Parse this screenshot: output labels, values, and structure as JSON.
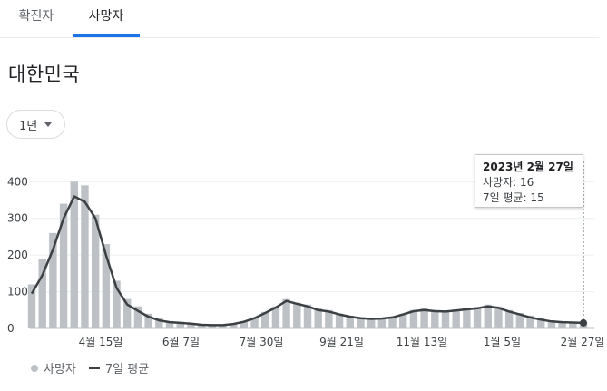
{
  "tabs": [
    {
      "label": "확진자",
      "active": false
    },
    {
      "label": "사망자",
      "active": true
    }
  ],
  "title": "대한민국",
  "range": {
    "label": "1년"
  },
  "colors": {
    "bar": "#bdc1c6",
    "line": "#3c4043",
    "accent": "#1a73e8"
  },
  "tooltip": {
    "date": "2023년 2월 27일",
    "deaths_label": "사망자: 16",
    "avg_label": "7일 평균: 15"
  },
  "legend": {
    "bars": "사망자",
    "line": "7일 평균"
  },
  "chart_data": {
    "type": "bar",
    "x": [
      "2022-03-01",
      "2022-03-08",
      "2022-03-15",
      "2022-03-22",
      "2022-03-29",
      "2022-04-05",
      "2022-04-12",
      "2022-04-19",
      "2022-04-26",
      "2022-05-03",
      "2022-05-10",
      "2022-05-17",
      "2022-05-24",
      "2022-05-31",
      "2022-06-07",
      "2022-06-14",
      "2022-06-21",
      "2022-06-28",
      "2022-07-05",
      "2022-07-12",
      "2022-07-19",
      "2022-07-26",
      "2022-08-02",
      "2022-08-09",
      "2022-08-16",
      "2022-08-23",
      "2022-08-30",
      "2022-09-06",
      "2022-09-13",
      "2022-09-20",
      "2022-09-27",
      "2022-10-04",
      "2022-10-11",
      "2022-10-18",
      "2022-10-25",
      "2022-11-01",
      "2022-11-08",
      "2022-11-15",
      "2022-11-22",
      "2022-11-29",
      "2022-12-06",
      "2022-12-13",
      "2022-12-20",
      "2022-12-27",
      "2023-01-03",
      "2023-01-10",
      "2023-01-17",
      "2023-01-24",
      "2023-01-31",
      "2023-02-07",
      "2023-02-14",
      "2023-02-21",
      "2023-02-27"
    ],
    "series": [
      {
        "name": "사망자",
        "type": "bar",
        "values": [
          120,
          190,
          260,
          340,
          400,
          390,
          310,
          230,
          130,
          80,
          60,
          40,
          30,
          20,
          18,
          15,
          12,
          10,
          10,
          14,
          20,
          30,
          45,
          60,
          80,
          70,
          65,
          55,
          50,
          40,
          35,
          30,
          28,
          28,
          32,
          40,
          50,
          55,
          50,
          48,
          52,
          55,
          58,
          65,
          60,
          50,
          42,
          35,
          28,
          22,
          20,
          18,
          16
        ]
      },
      {
        "name": "7일 평균",
        "type": "line",
        "values": [
          95,
          145,
          215,
          300,
          360,
          345,
          300,
          200,
          110,
          65,
          48,
          32,
          22,
          17,
          15,
          13,
          10,
          9,
          9,
          12,
          18,
          28,
          42,
          57,
          75,
          67,
          60,
          50,
          46,
          38,
          32,
          28,
          26,
          27,
          30,
          38,
          47,
          50,
          47,
          46,
          49,
          52,
          55,
          60,
          56,
          46,
          38,
          30,
          24,
          19,
          17,
          16,
          15
        ]
      }
    ],
    "yticks": [
      0,
      100,
      200,
      300,
      400
    ],
    "xticks": [
      "4월 15일",
      "6월 7일",
      "7월 30일",
      "9월 21일",
      "11월 13일",
      "1월 5일",
      "2월 27일"
    ],
    "ylim": [
      0,
      470
    ],
    "grid": true,
    "legend_position": "bottom-left"
  }
}
